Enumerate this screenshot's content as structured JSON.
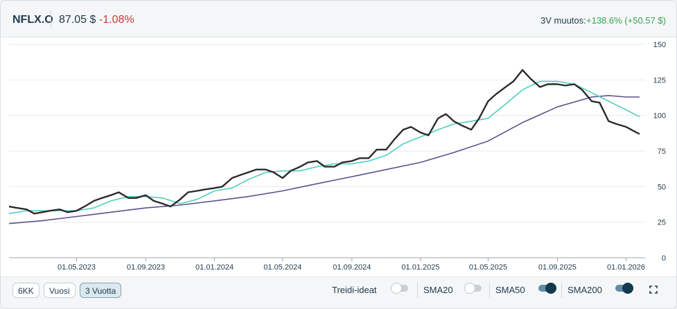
{
  "header": {
    "ticker": "NFLX.O",
    "price": "87.05 $",
    "change": "-1.08%",
    "period_label": "3V muutos:",
    "period_change": "+138.6% (+50.57 $)"
  },
  "colors": {
    "price": "#2b2b2b",
    "sma50": "#4fcfbf",
    "sma200": "#5b5290",
    "positive": "#3aa35a",
    "negative": "#c63a3a"
  },
  "chart_data": {
    "type": "line",
    "y_range": [
      0,
      150
    ],
    "x_range": [
      "2023-01-01",
      "2026-01-25"
    ],
    "y_ticks": [
      "150",
      "125",
      "100",
      "75",
      "50",
      "25",
      "0"
    ],
    "x_ticks": [
      {
        "date": "2023-05-01",
        "label": "01.05.2023"
      },
      {
        "date": "2023-09-01",
        "label": "01.09.2023"
      },
      {
        "date": "2024-01-01",
        "label": "01.01.2024"
      },
      {
        "date": "2024-05-01",
        "label": "01.05.2024"
      },
      {
        "date": "2024-09-01",
        "label": "01.09.2024"
      },
      {
        "date": "2025-01-01",
        "label": "01.01.2025"
      },
      {
        "date": "2025-05-01",
        "label": "01.05.2025"
      },
      {
        "date": "2025-09-01",
        "label": "01.09.2025"
      },
      {
        "date": "2026-01-01",
        "label": "01.01.2026"
      }
    ],
    "grid": true,
    "series": [
      {
        "key": "price",
        "points": [
          [
            "2023-01-01",
            36
          ],
          [
            "2023-01-15",
            35
          ],
          [
            "2023-02-01",
            34
          ],
          [
            "2023-02-15",
            31
          ],
          [
            "2023-03-01",
            32
          ],
          [
            "2023-03-15",
            33
          ],
          [
            "2023-04-01",
            34
          ],
          [
            "2023-04-15",
            32
          ],
          [
            "2023-05-01",
            33
          ],
          [
            "2023-05-15",
            36
          ],
          [
            "2023-06-01",
            40
          ],
          [
            "2023-06-15",
            42
          ],
          [
            "2023-07-01",
            44
          ],
          [
            "2023-07-15",
            46
          ],
          [
            "2023-08-01",
            42
          ],
          [
            "2023-08-15",
            42
          ],
          [
            "2023-09-01",
            44
          ],
          [
            "2023-09-15",
            40
          ],
          [
            "2023-10-01",
            38
          ],
          [
            "2023-10-15",
            36
          ],
          [
            "2023-11-01",
            41
          ],
          [
            "2023-11-15",
            46
          ],
          [
            "2023-12-01",
            47
          ],
          [
            "2023-12-15",
            48
          ],
          [
            "2024-01-01",
            49
          ],
          [
            "2024-01-15",
            50
          ],
          [
            "2024-02-01",
            56
          ],
          [
            "2024-02-15",
            58
          ],
          [
            "2024-03-01",
            60
          ],
          [
            "2024-03-15",
            62
          ],
          [
            "2024-04-01",
            62
          ],
          [
            "2024-04-15",
            60
          ],
          [
            "2024-05-01",
            56
          ],
          [
            "2024-05-15",
            61
          ],
          [
            "2024-06-01",
            64
          ],
          [
            "2024-06-15",
            67
          ],
          [
            "2024-07-01",
            68
          ],
          [
            "2024-07-15",
            64
          ],
          [
            "2024-08-01",
            64
          ],
          [
            "2024-08-15",
            67
          ],
          [
            "2024-09-01",
            68
          ],
          [
            "2024-09-15",
            70
          ],
          [
            "2024-10-01",
            70
          ],
          [
            "2024-10-15",
            76
          ],
          [
            "2024-11-01",
            76
          ],
          [
            "2024-11-15",
            83
          ],
          [
            "2024-12-01",
            90
          ],
          [
            "2024-12-15",
            92
          ],
          [
            "2025-01-01",
            88
          ],
          [
            "2025-01-15",
            86
          ],
          [
            "2025-02-01",
            98
          ],
          [
            "2025-02-15",
            101
          ],
          [
            "2025-03-01",
            96
          ],
          [
            "2025-03-15",
            93
          ],
          [
            "2025-04-01",
            90
          ],
          [
            "2025-04-15",
            98
          ],
          [
            "2025-05-01",
            110
          ],
          [
            "2025-05-15",
            115
          ],
          [
            "2025-06-01",
            120
          ],
          [
            "2025-06-15",
            124
          ],
          [
            "2025-07-01",
            132
          ],
          [
            "2025-07-15",
            126
          ],
          [
            "2025-08-01",
            120
          ],
          [
            "2025-08-15",
            122
          ],
          [
            "2025-09-01",
            122
          ],
          [
            "2025-09-15",
            121
          ],
          [
            "2025-10-01",
            122
          ],
          [
            "2025-10-15",
            118
          ],
          [
            "2025-11-01",
            110
          ],
          [
            "2025-11-15",
            109
          ],
          [
            "2025-12-01",
            96
          ],
          [
            "2025-12-15",
            94
          ],
          [
            "2026-01-01",
            92
          ],
          [
            "2026-01-15",
            89
          ],
          [
            "2026-01-25",
            87
          ]
        ]
      },
      {
        "key": "sma50",
        "points": [
          [
            "2023-01-01",
            31
          ],
          [
            "2023-02-01",
            33
          ],
          [
            "2023-03-01",
            33
          ],
          [
            "2023-04-01",
            33
          ],
          [
            "2023-05-01",
            33
          ],
          [
            "2023-06-01",
            35
          ],
          [
            "2023-07-01",
            40
          ],
          [
            "2023-08-01",
            43
          ],
          [
            "2023-09-01",
            43
          ],
          [
            "2023-10-01",
            42
          ],
          [
            "2023-11-01",
            38
          ],
          [
            "2023-12-01",
            41
          ],
          [
            "2024-01-01",
            47
          ],
          [
            "2024-02-01",
            49
          ],
          [
            "2024-03-01",
            55
          ],
          [
            "2024-04-01",
            60
          ],
          [
            "2024-05-01",
            61
          ],
          [
            "2024-06-01",
            61
          ],
          [
            "2024-07-01",
            64
          ],
          [
            "2024-08-01",
            66
          ],
          [
            "2024-09-01",
            66
          ],
          [
            "2024-10-01",
            68
          ],
          [
            "2024-11-01",
            72
          ],
          [
            "2024-12-01",
            80
          ],
          [
            "2025-01-01",
            85
          ],
          [
            "2025-02-01",
            90
          ],
          [
            "2025-03-01",
            94
          ],
          [
            "2025-04-01",
            96
          ],
          [
            "2025-05-01",
            98
          ],
          [
            "2025-06-01",
            108
          ],
          [
            "2025-07-01",
            118
          ],
          [
            "2025-08-01",
            124
          ],
          [
            "2025-09-01",
            124
          ],
          [
            "2025-10-01",
            122
          ],
          [
            "2025-11-01",
            116
          ],
          [
            "2025-12-01",
            110
          ],
          [
            "2026-01-01",
            104
          ],
          [
            "2026-01-25",
            99
          ]
        ]
      },
      {
        "key": "sma200",
        "points": [
          [
            "2023-01-01",
            24
          ],
          [
            "2023-03-01",
            26
          ],
          [
            "2023-05-01",
            29
          ],
          [
            "2023-07-01",
            32
          ],
          [
            "2023-09-01",
            35
          ],
          [
            "2023-11-01",
            37
          ],
          [
            "2024-01-01",
            40
          ],
          [
            "2024-03-01",
            43
          ],
          [
            "2024-05-01",
            47
          ],
          [
            "2024-07-01",
            52
          ],
          [
            "2024-09-01",
            57
          ],
          [
            "2024-11-01",
            62
          ],
          [
            "2025-01-01",
            67
          ],
          [
            "2025-03-01",
            74
          ],
          [
            "2025-05-01",
            82
          ],
          [
            "2025-07-01",
            95
          ],
          [
            "2025-09-01",
            106
          ],
          [
            "2025-11-01",
            113
          ],
          [
            "2025-12-01",
            114
          ],
          [
            "2026-01-01",
            113
          ],
          [
            "2026-01-25",
            113
          ]
        ]
      }
    ]
  },
  "footer": {
    "ranges": [
      {
        "label": "6KK",
        "active": false
      },
      {
        "label": "Vuosi",
        "active": false
      },
      {
        "label": "3 Vuotta",
        "active": true
      }
    ],
    "toggles": [
      {
        "label": "Treidi-ideat",
        "on": false
      },
      {
        "label": "SMA20",
        "on": false
      },
      {
        "label": "SMA50",
        "on": true
      },
      {
        "label": "SMA200",
        "on": true
      }
    ],
    "expand_icon": "expand-icon"
  }
}
